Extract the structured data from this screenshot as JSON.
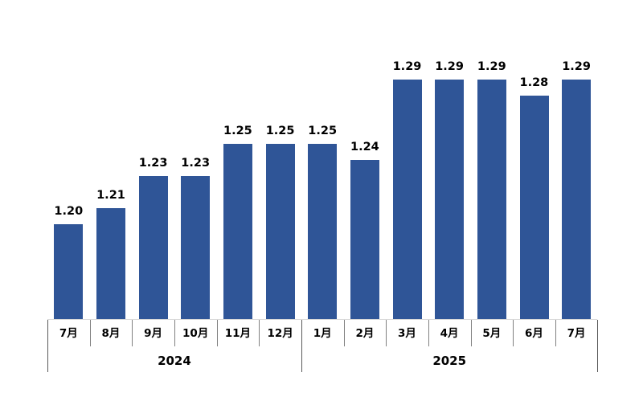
{
  "chart_data": {
    "type": "bar",
    "title": "",
    "xlabel": "",
    "ylabel": "",
    "categories": [
      "7月",
      "8月",
      "9月",
      "10月",
      "11月",
      "12月",
      "1月",
      "2月",
      "3月",
      "4月",
      "5月",
      "6月",
      "7月"
    ],
    "values": [
      1.2,
      1.21,
      1.23,
      1.23,
      1.25,
      1.25,
      1.25,
      1.24,
      1.29,
      1.29,
      1.29,
      1.28,
      1.29
    ],
    "data_labels": [
      "1.20",
      "1.21",
      "1.23",
      "1.23",
      "1.25",
      "1.25",
      "1.25",
      "1.24",
      "1.29",
      "1.29",
      "1.29",
      "1.28",
      "1.29"
    ],
    "groups": [
      {
        "label": "2024",
        "start": 0,
        "end": 5
      },
      {
        "label": "2025",
        "start": 6,
        "end": 12
      }
    ],
    "ylim": [
      1.14,
      1.3
    ],
    "grid": false,
    "legend": false,
    "colors": {
      "bar": "#2F5597",
      "value_label": "#000000",
      "axis_text": "#000000",
      "month_tick": "#808080",
      "boundary_tick": "#595959",
      "baseline": "#D9D9D9"
    }
  }
}
